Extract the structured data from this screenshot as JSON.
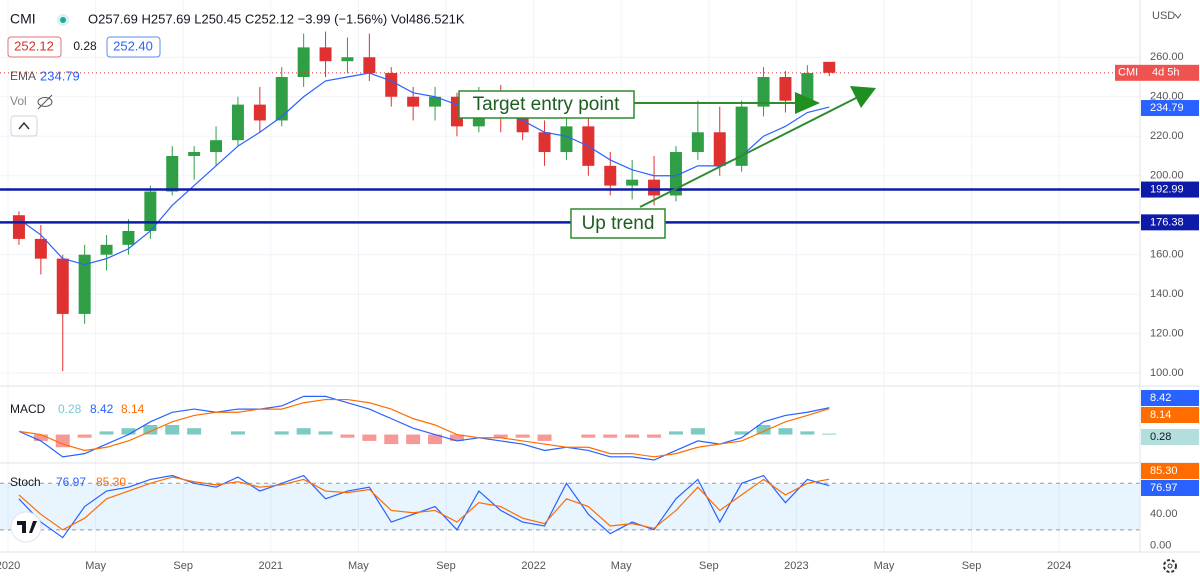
{
  "header": {
    "symbol": "CMI",
    "ohlc": "O257.69 H257.69 L250.45 C252.12 −3.99 (−1.56%) Vol486.521K",
    "bid": "252.12",
    "spread": "0.28",
    "ask": "252.40",
    "vol_label": "Vol",
    "currency": "USD",
    "countdown_symbol": "CMI",
    "countdown": "4d 5h"
  },
  "chart_data": [
    {
      "type": "candlestick",
      "x": [
        "2020-01",
        "2020-02",
        "2020-03",
        "2020-04",
        "2020-05",
        "2020-06",
        "2020-07",
        "2020-08",
        "2020-09",
        "2020-10",
        "2020-11",
        "2020-12",
        "2021-01",
        "2021-02",
        "2021-03",
        "2021-04",
        "2021-05",
        "2021-06",
        "2021-07",
        "2021-08",
        "2021-09",
        "2021-10",
        "2021-11",
        "2021-12",
        "2022-01",
        "2022-02",
        "2022-03",
        "2022-04",
        "2022-05",
        "2022-06",
        "2022-07",
        "2022-08",
        "2022-09",
        "2022-10",
        "2022-11",
        "2022-12",
        "2023-01",
        "2023-02"
      ],
      "open": [
        180,
        168,
        158,
        130,
        160,
        165,
        172,
        192,
        210,
        212,
        218,
        236,
        228,
        250,
        265,
        258,
        260,
        252,
        240,
        235,
        240,
        225,
        240,
        230,
        222,
        212,
        225,
        205,
        195,
        198,
        190,
        212,
        222,
        205,
        235,
        250,
        238,
        257.69
      ],
      "high": [
        182,
        175,
        160,
        165,
        170,
        178,
        195,
        215,
        215,
        225,
        240,
        245,
        255,
        272,
        273,
        270,
        272,
        255,
        245,
        245,
        242,
        245,
        246,
        232,
        228,
        235,
        232,
        212,
        208,
        210,
        215,
        238,
        235,
        238,
        255,
        253,
        256,
        257.69
      ],
      "low": [
        165,
        150,
        101,
        125,
        152,
        160,
        168,
        190,
        198,
        205,
        215,
        222,
        225,
        245,
        250,
        252,
        248,
        235,
        228,
        228,
        220,
        222,
        222,
        218,
        205,
        208,
        200,
        190,
        188,
        185,
        187,
        208,
        200,
        202,
        230,
        232,
        235,
        250.45
      ],
      "close": [
        168,
        158,
        130,
        160,
        165,
        172,
        192,
        210,
        212,
        218,
        236,
        228,
        250,
        265,
        258,
        260,
        252,
        240,
        235,
        240,
        225,
        240,
        230,
        222,
        212,
        225,
        205,
        195,
        198,
        190,
        212,
        222,
        205,
        235,
        250,
        238,
        252,
        252.12
      ],
      "up_color": "#2f9e44",
      "down_color": "#e03131",
      "ylim": [
        94,
        289
      ],
      "yticks": [
        {
          "value": 100,
          "label": "100.00"
        },
        {
          "value": 120,
          "label": "120.00"
        },
        {
          "value": 140,
          "label": "140.00"
        },
        {
          "value": 160,
          "label": "160.00"
        },
        {
          "value": 200,
          "label": "200.00"
        },
        {
          "value": 220,
          "label": "220.00"
        },
        {
          "value": 240,
          "label": "240.00"
        },
        {
          "value": 260,
          "label": "260.00"
        }
      ],
      "series": [
        {
          "name": "EMA",
          "color": "#2962ff",
          "values": [
            178,
            170,
            158,
            155,
            158,
            163,
            172,
            185,
            195,
            205,
            215,
            222,
            230,
            240,
            248,
            250,
            252,
            248,
            242,
            240,
            236,
            235,
            232,
            228,
            222,
            220,
            215,
            208,
            203,
            200,
            200,
            205,
            205,
            210,
            220,
            225,
            232,
            234.79
          ]
        }
      ],
      "hlines": [
        {
          "value": 192.99,
          "color": "#0d1ba8"
        },
        {
          "value": 176.38,
          "color": "#0d1ba8"
        }
      ],
      "annotations": [
        {
          "text": "Target entry point"
        },
        {
          "text": "Up trend"
        }
      ],
      "xticks": [
        {
          "value": "2020-01",
          "label": "2020"
        },
        {
          "value": "2020-05",
          "label": "May"
        },
        {
          "value": "2020-09",
          "label": "Sep"
        },
        {
          "value": "2021-01",
          "label": "2021"
        },
        {
          "value": "2021-05",
          "label": "May"
        },
        {
          "value": "2021-09",
          "label": "Sep"
        },
        {
          "value": "2022-01",
          "label": "2022"
        },
        {
          "value": "2022-05",
          "label": "May"
        },
        {
          "value": "2022-09",
          "label": "Sep"
        },
        {
          "value": "2023-01",
          "label": "2023"
        },
        {
          "value": "2023-05",
          "label": "May"
        },
        {
          "value": "2023-09",
          "label": "Sep"
        },
        {
          "value": "2024-01",
          "label": "2024"
        }
      ]
    },
    {
      "type": "line",
      "title": "MACD",
      "ylim": [
        -8,
        14
      ],
      "series": [
        {
          "color": "#2962ff",
          "values": [
            1,
            -2,
            -7,
            -6,
            -3,
            0,
            4,
            7,
            8,
            7,
            8,
            8,
            9,
            12,
            12,
            10,
            8,
            5,
            2,
            0,
            -2,
            -1,
            -2,
            -3,
            -5,
            -4,
            -5,
            -7,
            -7,
            -8,
            -5,
            -2,
            -3,
            -1,
            4,
            6,
            7,
            8.42
          ]
        },
        {
          "color": "#ff6d00",
          "values": [
            1,
            0,
            -3,
            -5,
            -4,
            -2,
            1,
            4,
            6,
            7,
            7,
            8,
            8,
            10,
            11,
            11,
            10,
            8,
            5,
            3,
            0,
            -1,
            -1,
            -2,
            -3,
            -4,
            -4,
            -6,
            -6,
            -7,
            -6,
            -4,
            -3,
            -2,
            1,
            4,
            6,
            8.14
          ]
        }
      ],
      "histogram": {
        "pos_color": "#26a69a",
        "neg_color": "#ef5350",
        "values": [
          0,
          -2,
          -4,
          -1,
          1,
          2,
          3,
          3,
          2,
          0,
          1,
          0,
          1,
          2,
          1,
          -1,
          -2,
          -3,
          -3,
          -3,
          -2,
          0,
          -1,
          -1,
          -2,
          0,
          -1,
          -1,
          -1,
          -1,
          1,
          2,
          0,
          1,
          3,
          2,
          1,
          0.28
        ]
      }
    },
    {
      "type": "line",
      "title": "Stoch",
      "ylim": [
        -6,
        101
      ],
      "band": [
        20,
        80
      ],
      "yticks": [
        {
          "value": 0,
          "label": "0.00"
        },
        {
          "value": 40,
          "label": "40.00"
        }
      ],
      "series": [
        {
          "color": "#2962ff",
          "values": [
            60,
            30,
            10,
            50,
            70,
            75,
            85,
            90,
            80,
            75,
            88,
            70,
            80,
            90,
            60,
            70,
            75,
            30,
            40,
            50,
            20,
            70,
            45,
            30,
            25,
            80,
            40,
            15,
            30,
            20,
            60,
            85,
            30,
            80,
            90,
            55,
            85,
            76.97
          ]
        },
        {
          "color": "#ff6d00",
          "last_label": "85.30",
          "values": [
            65,
            40,
            20,
            35,
            60,
            70,
            80,
            88,
            82,
            78,
            82,
            75,
            78,
            85,
            70,
            68,
            72,
            45,
            42,
            45,
            30,
            55,
            50,
            35,
            28,
            60,
            50,
            25,
            28,
            22,
            45,
            75,
            45,
            65,
            85,
            65,
            80,
            85.3
          ]
        }
      ]
    }
  ]
}
